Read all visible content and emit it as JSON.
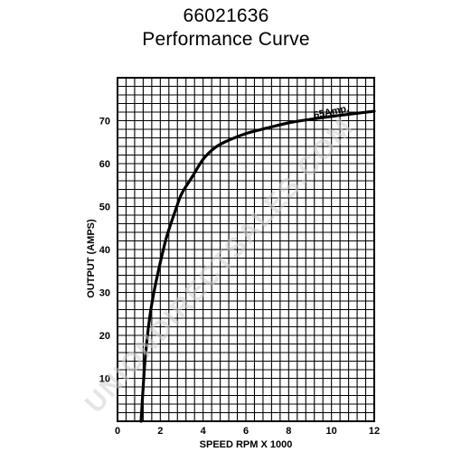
{
  "header": {
    "part_number": "66021636",
    "subtitle": "Performance Curve"
  },
  "watermark": "UNIONDIRECTSALES.COM",
  "chart_data": {
    "type": "line",
    "title": "66021636 Performance Curve",
    "xlabel": "SPEED  RPM  X  1000",
    "ylabel": "OUTPUT  (AMPS)",
    "xlim": [
      0,
      12
    ],
    "ylim": [
      0,
      80
    ],
    "x_ticks": [
      0,
      2,
      4,
      6,
      8,
      10,
      12
    ],
    "y_ticks": [
      10,
      20,
      30,
      40,
      50,
      60,
      70
    ],
    "grid": true,
    "annotation": {
      "text": "65Amp.",
      "x": 9.2,
      "y": 70.5
    },
    "series": [
      {
        "x": [
          1.1,
          1.2,
          1.3,
          1.5,
          1.7,
          2.0,
          2.3,
          2.7,
          3.0,
          3.5,
          4.0,
          4.5,
          5.0,
          6.0,
          7.0,
          8.0,
          9.0,
          10.0,
          11.0,
          12.0
        ],
        "y": [
          0,
          8,
          15,
          24,
          30,
          37,
          43,
          49,
          53,
          57,
          61,
          63.5,
          65,
          67,
          68.3,
          69.5,
          70.3,
          71,
          71.6,
          72.2
        ]
      }
    ]
  }
}
